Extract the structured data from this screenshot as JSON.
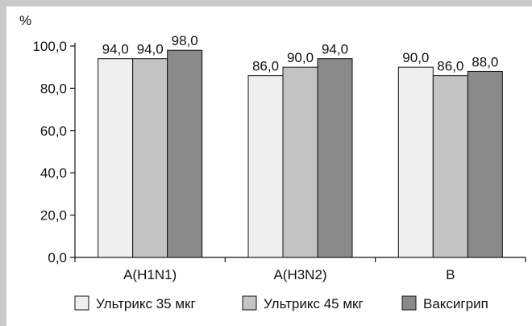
{
  "chart_data": {
    "type": "bar",
    "title": "",
    "xlabel": "",
    "ylabel": "%",
    "ylim": [
      0,
      100
    ],
    "yticks": [
      "0,0",
      "20,0",
      "40,0",
      "60,0",
      "80,0",
      "100,0"
    ],
    "ytick_values": [
      0,
      20,
      40,
      60,
      80,
      100
    ],
    "categories": [
      "A(H1N1)",
      "A(H3N2)",
      "B"
    ],
    "series": [
      {
        "name": "Ультрикс 35 мкг",
        "values": [
          94.0,
          86.0,
          90.0
        ],
        "labels": [
          "94,0",
          "86,0",
          "90,0"
        ],
        "color": "#efefef"
      },
      {
        "name": "Ультрикс 45 мкг",
        "values": [
          94.0,
          90.0,
          86.0
        ],
        "labels": [
          "94,0",
          "90,0",
          "86,0"
        ],
        "color": "#c4c4c4"
      },
      {
        "name": "Ваксигрип",
        "values": [
          98.0,
          94.0,
          88.0
        ],
        "labels": [
          "98,0",
          "94,0",
          "88,0"
        ],
        "color": "#8a8a8a"
      }
    ],
    "grid": false,
    "legend_position": "bottom"
  }
}
